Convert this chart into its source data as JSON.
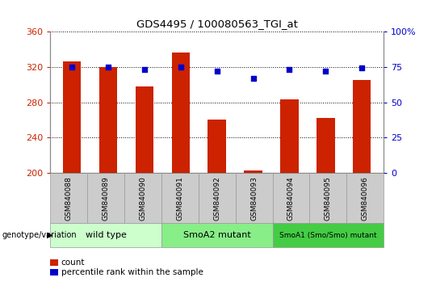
{
  "title": "GDS4495 / 100080563_TGI_at",
  "samples": [
    "GSM840088",
    "GSM840089",
    "GSM840090",
    "GSM840091",
    "GSM840092",
    "GSM840093",
    "GSM840094",
    "GSM840095",
    "GSM840096"
  ],
  "counts": [
    326,
    320,
    298,
    336,
    260,
    203,
    283,
    262,
    305
  ],
  "percentiles": [
    75,
    75,
    73,
    75,
    72,
    67,
    73,
    72,
    74
  ],
  "ylim_left": [
    200,
    360
  ],
  "ylim_right": [
    0,
    100
  ],
  "yticks_left": [
    200,
    240,
    280,
    320,
    360
  ],
  "yticks_right": [
    0,
    25,
    50,
    75,
    100
  ],
  "ytick_right_labels": [
    "0",
    "25",
    "50",
    "75",
    "100%"
  ],
  "bar_color": "#CC2200",
  "dot_color": "#0000CC",
  "bar_width": 0.5,
  "grid_color": "#000000",
  "groups": [
    {
      "label": "wild type",
      "indices": [
        0,
        1,
        2
      ],
      "color": "#CCFFCC"
    },
    {
      "label": "SmoA2 mutant",
      "indices": [
        3,
        4,
        5
      ],
      "color": "#88EE88"
    },
    {
      "label": "SmoA1 (Smo/Smo) mutant",
      "indices": [
        6,
        7,
        8
      ],
      "color": "#44CC44"
    }
  ],
  "legend_count_label": "count",
  "legend_percentile_label": "percentile rank within the sample",
  "genotype_label": "genotype/variation",
  "tick_label_color_left": "#CC2200",
  "tick_label_color_right": "#0000CC",
  "sample_bg_color": "#CCCCCC",
  "sample_border_color": "#999999"
}
